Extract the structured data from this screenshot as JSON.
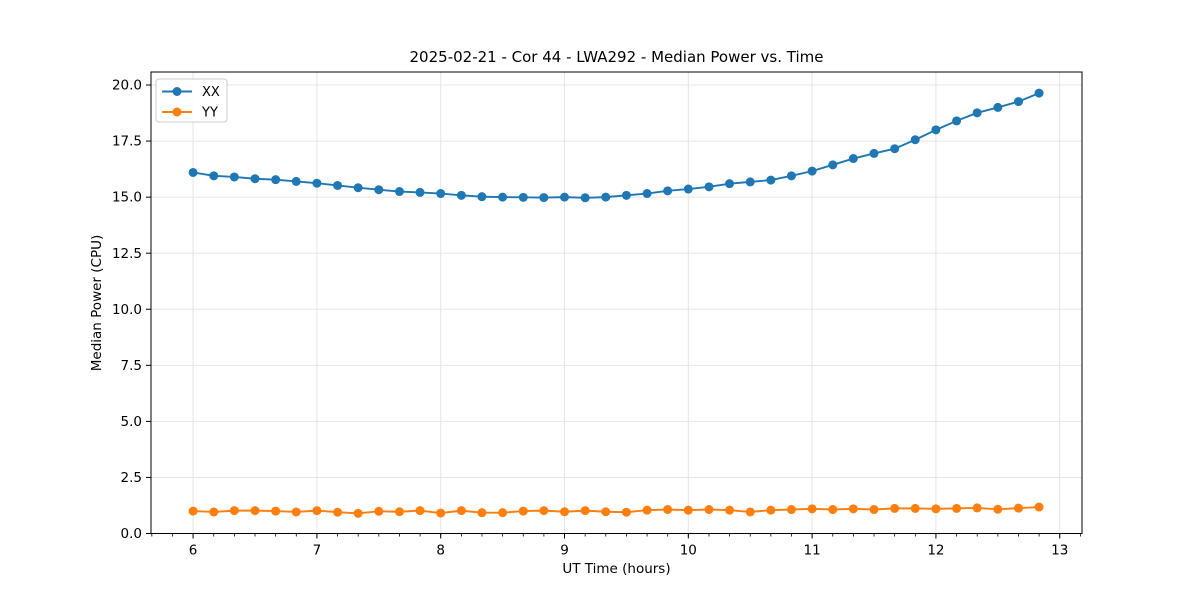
{
  "chart_data": {
    "type": "line",
    "title": "2025-02-21 - Cor 44 - LWA292 - Median Power vs. Time",
    "xlabel": "UT Time (hours)",
    "ylabel": "Median Power (CPU)",
    "xlim": [
      5.66,
      13.18
    ],
    "ylim": [
      0,
      20.58
    ],
    "grid": true,
    "grid_color": "#e5e5e5",
    "background_color": "#ffffff",
    "spine_color": "#000000",
    "x_ticks": {
      "positions": [
        6,
        7,
        8,
        9,
        10,
        11,
        12,
        13
      ],
      "labels": [
        "6",
        "7",
        "8",
        "9",
        "10",
        "11",
        "12",
        "13"
      ]
    },
    "x_minor_step": 0.16667,
    "y_ticks": {
      "positions": [
        0.0,
        2.5,
        5.0,
        7.5,
        10.0,
        12.5,
        15.0,
        17.5,
        20.0
      ],
      "labels": [
        "0.0",
        "2.5",
        "5.0",
        "7.5",
        "10.0",
        "12.5",
        "15.0",
        "17.5",
        "20.0"
      ]
    },
    "legend": {
      "position": "upper left",
      "entries": [
        {
          "label": "XX",
          "color": "#1f77b4"
        },
        {
          "label": "YY",
          "color": "#ff7f0e"
        }
      ]
    },
    "marker": "circle",
    "marker_radius": 4.5,
    "line_width": 1.9,
    "x": [
      6.0,
      6.167,
      6.333,
      6.5,
      6.667,
      6.833,
      7.0,
      7.167,
      7.333,
      7.5,
      7.667,
      7.833,
      8.0,
      8.167,
      8.333,
      8.5,
      8.667,
      8.833,
      9.0,
      9.167,
      9.333,
      9.5,
      9.667,
      9.833,
      10.0,
      10.167,
      10.333,
      10.5,
      10.667,
      10.833,
      11.0,
      11.167,
      11.333,
      11.5,
      11.667,
      11.833,
      12.0,
      12.167,
      12.333,
      12.5,
      12.667,
      12.833
    ],
    "series": [
      {
        "name": "XX",
        "color": "#1f77b4",
        "values": [
          16.1,
          15.95,
          15.9,
          15.82,
          15.78,
          15.7,
          15.62,
          15.52,
          15.42,
          15.33,
          15.25,
          15.21,
          15.16,
          15.08,
          15.02,
          15.0,
          14.99,
          14.98,
          15.0,
          14.97,
          15.0,
          15.08,
          15.16,
          15.28,
          15.36,
          15.46,
          15.6,
          15.68,
          15.76,
          15.95,
          16.16,
          16.44,
          16.72,
          16.95,
          17.16,
          17.56,
          18.0,
          18.4,
          18.76,
          19.0,
          19.26,
          19.64
        ]
      },
      {
        "name": "YY",
        "color": "#ff7f0e",
        "values": [
          1.0,
          0.96,
          1.02,
          1.02,
          1.0,
          0.96,
          1.02,
          0.95,
          0.9,
          0.99,
          0.97,
          1.02,
          0.91,
          1.02,
          0.93,
          0.93,
          1.0,
          1.02,
          0.97,
          1.02,
          0.97,
          0.95,
          1.04,
          1.07,
          1.04,
          1.07,
          1.04,
          0.96,
          1.04,
          1.07,
          1.1,
          1.07,
          1.1,
          1.07,
          1.12,
          1.12,
          1.1,
          1.12,
          1.14,
          1.08,
          1.13,
          1.18
        ]
      }
    ]
  }
}
